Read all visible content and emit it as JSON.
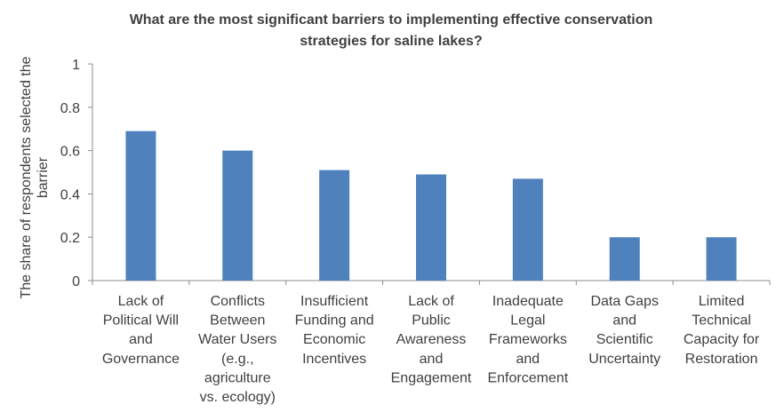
{
  "chart_data": {
    "type": "bar",
    "title": "What are the most significant barriers to implementing effective conservation strategies for saline lakes?",
    "title_lines": [
      "What are the most significant barriers to implementing effective conservation",
      "strategies for saline lakes?"
    ],
    "xlabel": "",
    "ylabel": "The share of respondents selected the barrier",
    "ylabel_lines": [
      "The share of respondents selected the",
      "barrier"
    ],
    "ylim": [
      0,
      1
    ],
    "yticks": [
      "0",
      "0.2",
      "0.4",
      "0.6",
      "0.8",
      "1"
    ],
    "grid": false,
    "legend": "none",
    "bar_color": "#4F81BD",
    "categories": [
      [
        "Lack of",
        "Political Will",
        "and",
        "Governance"
      ],
      [
        "Conflicts",
        "Between",
        "Water Users",
        "(e.g.,",
        "agriculture",
        "vs. ecology)"
      ],
      [
        "Insufficient",
        "Funding and",
        "Economic",
        "Incentives"
      ],
      [
        "Lack of",
        "Public",
        "Awareness",
        "and",
        "Engagement"
      ],
      [
        "Inadequate",
        "Legal",
        "Frameworks",
        "and",
        "Enforcement"
      ],
      [
        "Data Gaps",
        "and",
        "Scientific",
        "Uncertainty"
      ],
      [
        "Limited",
        "Technical",
        "Capacity for",
        "Restoration"
      ]
    ],
    "values": [
      0.69,
      0.6,
      0.51,
      0.49,
      0.47,
      0.2,
      0.2
    ]
  }
}
